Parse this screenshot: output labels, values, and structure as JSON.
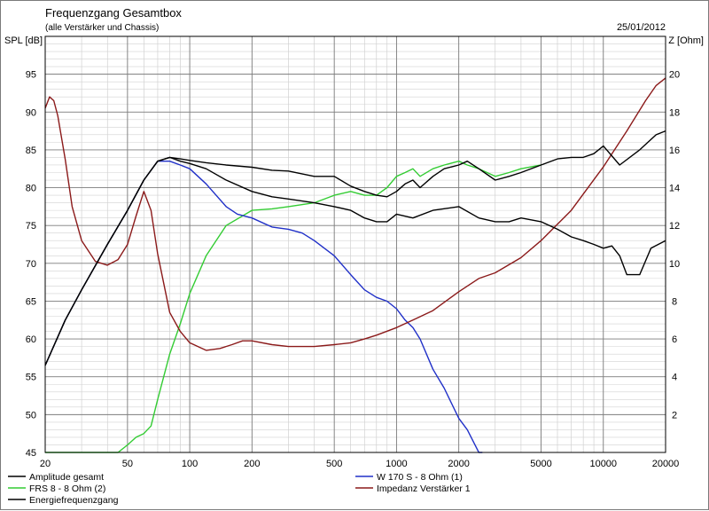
{
  "window": {
    "title": "Frequenzgang Gesamtbox",
    "subtitle": "(alle Verstärker und Chassis)",
    "date": "25/01/2012"
  },
  "chart_data": {
    "type": "line",
    "xscale": "log",
    "xlim": [
      20,
      20000
    ],
    "ylim": [
      45,
      100
    ],
    "y2lim": [
      0,
      22
    ],
    "ylabel": "SPL [dB]",
    "y2label": "Z [Ohm]",
    "xticks": [
      20,
      50,
      100,
      200,
      500,
      1000,
      2000,
      5000,
      10000,
      20000
    ],
    "yticks": [
      45,
      50,
      55,
      60,
      65,
      70,
      75,
      80,
      85,
      90,
      95
    ],
    "y2ticks": [
      2,
      4,
      6,
      8,
      10,
      12,
      14,
      16,
      18,
      20
    ],
    "grid": true,
    "legend_position": "bottom",
    "legend": [
      {
        "label": "Amplitude gesamt",
        "color": "#000000"
      },
      {
        "label": "FRS 8 - 8 Ohm (2)",
        "color": "#33cc33"
      },
      {
        "label": "Energiefrequenzgang",
        "color": "#000000"
      },
      {
        "label": "W 170 S - 8 Ohm (1)",
        "color": "#2030c8"
      },
      {
        "label": "Impedanz Verstärker 1",
        "color": "#8b1a1a"
      }
    ],
    "series": [
      {
        "name": "Amplitude gesamt",
        "axis": "left",
        "color": "#000000",
        "x": [
          20,
          25,
          30,
          40,
          50,
          60,
          70,
          80,
          90,
          100,
          120,
          150,
          200,
          250,
          300,
          400,
          500,
          600,
          700,
          800,
          900,
          1000,
          1100,
          1200,
          1300,
          1500,
          1700,
          2000,
          2200,
          2500,
          3000,
          3500,
          4000,
          5000,
          6000,
          7000,
          8000,
          9000,
          10000,
          12000,
          15000,
          18000,
          20000
        ],
        "y": [
          56.5,
          62.5,
          66.5,
          72.5,
          77,
          81,
          83.5,
          84,
          83.8,
          83.6,
          83.3,
          83,
          82.7,
          82.3,
          82.2,
          81.5,
          81.5,
          80.2,
          79.5,
          79,
          78.8,
          79.5,
          80.5,
          81,
          80,
          81.5,
          82.5,
          83,
          83.5,
          82.5,
          81,
          81.5,
          82,
          83,
          83.8,
          84,
          84,
          84.5,
          85.5,
          83,
          85,
          87,
          87.5
        ]
      },
      {
        "name": "Energiefrequenzgang",
        "axis": "left",
        "color": "#000000",
        "x": [
          20,
          25,
          30,
          40,
          50,
          60,
          70,
          80,
          90,
          100,
          120,
          150,
          200,
          250,
          300,
          400,
          500,
          600,
          700,
          800,
          900,
          1000,
          1200,
          1500,
          2000,
          2500,
          3000,
          3500,
          4000,
          5000,
          6000,
          7000,
          8000,
          9000,
          10000,
          11000,
          12000,
          13000,
          15000,
          17000,
          20000
        ],
        "y": [
          56.5,
          62.5,
          66.5,
          72.5,
          77,
          81,
          83.5,
          84,
          83.5,
          83.2,
          82.5,
          81,
          79.5,
          78.8,
          78.5,
          78,
          77.5,
          77,
          76,
          75.5,
          75.5,
          76.5,
          76,
          77,
          77.5,
          76,
          75.5,
          75.5,
          76,
          75.5,
          74.5,
          73.5,
          73,
          72.5,
          72,
          72.3,
          71,
          68.5,
          68.5,
          72,
          73
        ]
      },
      {
        "name": "FRS 8 - 8 Ohm (2)",
        "axis": "left",
        "color": "#33cc33",
        "x": [
          20,
          30,
          45,
          50,
          55,
          60,
          65,
          70,
          80,
          90,
          100,
          120,
          150,
          200,
          250,
          300,
          400,
          500,
          600,
          700,
          800,
          900,
          1000,
          1100,
          1200,
          1300,
          1500,
          1700,
          2000,
          2200,
          2500,
          3000,
          3500,
          4000,
          5000
        ],
        "y": [
          45,
          45,
          45,
          46,
          47,
          47.5,
          48.5,
          52,
          58,
          62,
          66,
          71,
          75,
          77,
          77.2,
          77.5,
          78,
          79,
          79.5,
          79,
          79,
          80,
          81.5,
          82,
          82.5,
          81.5,
          82.5,
          83,
          83.5,
          83,
          82.5,
          81.5,
          82,
          82.5,
          83
        ]
      },
      {
        "name": "W 170 S - 8 Ohm (1)",
        "axis": "left",
        "color": "#2030c8",
        "x": [
          20,
          25,
          30,
          40,
          50,
          60,
          70,
          80,
          90,
          100,
          120,
          150,
          170,
          200,
          250,
          300,
          350,
          400,
          500,
          600,
          700,
          800,
          900,
          1000,
          1100,
          1200,
          1300,
          1500,
          1700,
          2000,
          2200,
          2500,
          2600
        ],
        "y": [
          56.5,
          62.5,
          66.5,
          72.5,
          77,
          81,
          83.5,
          83.5,
          83,
          82.5,
          80.5,
          77.5,
          76.5,
          76,
          74.8,
          74.5,
          74,
          73,
          71,
          68.5,
          66.5,
          65.5,
          65,
          64,
          62.5,
          61.5,
          60,
          56,
          53.5,
          49.5,
          48,
          45,
          45
        ]
      },
      {
        "name": "Impedanz Verstärker 1",
        "axis": "right",
        "color": "#8b1a1a",
        "x": [
          20,
          21,
          22,
          23,
          25,
          27,
          30,
          35,
          40,
          45,
          50,
          55,
          60,
          65,
          70,
          80,
          90,
          100,
          120,
          140,
          160,
          180,
          200,
          250,
          300,
          400,
          500,
          600,
          700,
          800,
          1000,
          1200,
          1500,
          2000,
          2500,
          3000,
          4000,
          5000,
          7000,
          10000,
          13000,
          16000,
          18000,
          20000
        ],
        "y": [
          18.2,
          18.8,
          18.6,
          17.8,
          15.5,
          13,
          11.2,
          10.1,
          9.9,
          10.2,
          11,
          12.5,
          13.8,
          12.8,
          10.5,
          7.4,
          6.4,
          5.8,
          5.4,
          5.5,
          5.7,
          5.9,
          5.9,
          5.7,
          5.6,
          5.6,
          5.7,
          5.8,
          6,
          6.2,
          6.6,
          7,
          7.5,
          8.5,
          9.2,
          9.5,
          10.3,
          11.2,
          12.8,
          15.1,
          17,
          18.6,
          19.4,
          19.8
        ]
      }
    ]
  }
}
